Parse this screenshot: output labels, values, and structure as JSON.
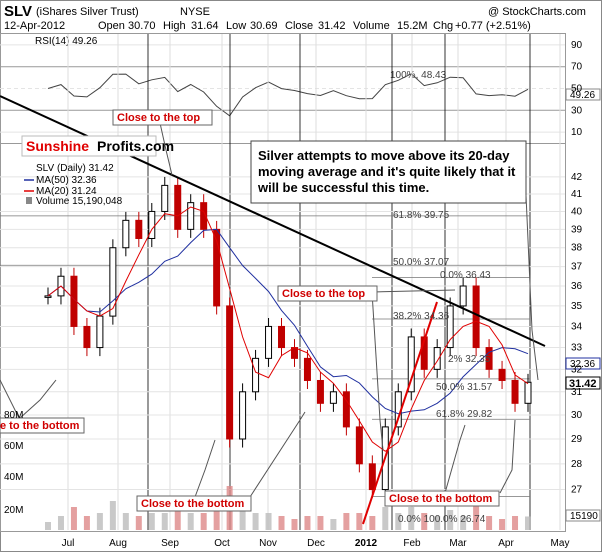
{
  "header": {
    "symbol": "SLV",
    "name": "(iShares Silver Trust)",
    "exchange": "NYSE",
    "copyright": "@ StockCharts.com",
    "date": "12-Apr-2012",
    "open_label": "Open",
    "open": "30.70",
    "high_label": "High",
    "high": "31.64",
    "low_label": "Low",
    "low": "30.69",
    "close_label": "Close",
    "close": "31.42",
    "volume_label": "Volume",
    "volume": "15.2M",
    "chg_label": "Chg",
    "chg": "+0.77 (+2.51%)"
  },
  "rsi_panel": {
    "label": "RSI(14) 49.26",
    "current_value_label": "49.26",
    "upper_text": "100%, 48.43"
  },
  "price_panel": {
    "legend_slv": "SLV (Daily) 31.42",
    "legend_ma50": "MA(50) 32.36",
    "legend_ma20": "MA(20) 31.24",
    "legend_volume": "Volume 15,190,048",
    "ma50_tag": "32.36",
    "close_tag": "31.42",
    "volume_tag": "15190"
  },
  "branding": {
    "sunshine": "Sunshine",
    "profits": "Profits.com"
  },
  "commentary": {
    "line1": "Silver attempts to move above its 20-day",
    "line2": "moving average and it's quite likely that it",
    "line3": "will be successful this time."
  },
  "callouts": {
    "top1": "Close to the top",
    "top2": "Close to the top",
    "bottom_left": "e to the bottom",
    "bottom_mid": "Close to the bottom",
    "bottom_right": "Close to the bottom"
  },
  "fib_labels": {
    "f618_a": "61.8% 39.75",
    "f50_a": "50.0% 37.07",
    "f0_b": "0.0% 36.43",
    "f382_b": "38.2% 34.36",
    "f382_a": "2% 32.35",
    "f50_b": "50.0% 31.57",
    "f618_b": "61.8% 29.82",
    "f100_b": "0.0% 100.0% 26.74"
  },
  "chart_data": {
    "type": "candlestick",
    "symbol": "SLV",
    "title": "SLV (iShares Silver Trust) NYSE",
    "x_axis": {
      "ticks": [
        "Jul",
        "Aug",
        "Sep",
        "Oct",
        "Nov",
        "Dec",
        "2012",
        "Feb",
        "Mar",
        "Apr",
        "May"
      ]
    },
    "y_axis": {
      "scale": "log",
      "range": [
        25.5,
        44
      ],
      "ticks": [
        27,
        28,
        29,
        30,
        31,
        32,
        33,
        34,
        35,
        36,
        37,
        38,
        39,
        40,
        41,
        42
      ]
    },
    "rsi_axis": {
      "range": [
        0,
        100
      ],
      "ticks": [
        10,
        30,
        50,
        70,
        90
      ]
    },
    "volume_axis": {
      "ticks": [
        "20M",
        "40M",
        "60M",
        "80M"
      ]
    },
    "rsi_current": 49.26,
    "last_bar": {
      "open": 30.7,
      "high": 31.64,
      "low": 30.69,
      "close": 31.42,
      "volume": 15190048
    },
    "ma50_last": 32.36,
    "ma20_last": 31.24,
    "fib_levels": [
      {
        "label": "61.8%",
        "value": 39.75
      },
      {
        "label": "50.0%",
        "value": 37.07
      },
      {
        "label": "0.0%",
        "value": 36.43
      },
      {
        "label": "38.2%",
        "value": 34.36
      },
      {
        "label": "50.0%",
        "value": 31.57
      },
      {
        "label": "61.8%",
        "value": 29.82
      },
      {
        "label": "100.0%",
        "value": 26.74
      }
    ],
    "close_series_approx": [
      35.5,
      36.5,
      34.0,
      33.0,
      34.5,
      38.0,
      39.5,
      38.5,
      40.0,
      41.5,
      39.0,
      40.5,
      39.0,
      35.0,
      29.0,
      31.0,
      32.5,
      34.0,
      33.0,
      32.5,
      31.5,
      30.5,
      31.0,
      29.5,
      28.0,
      27.0,
      29.5,
      31.0,
      33.5,
      32.0,
      33.0,
      35.0,
      36.0,
      33.0,
      32.0,
      31.5,
      30.5,
      31.42
    ]
  }
}
